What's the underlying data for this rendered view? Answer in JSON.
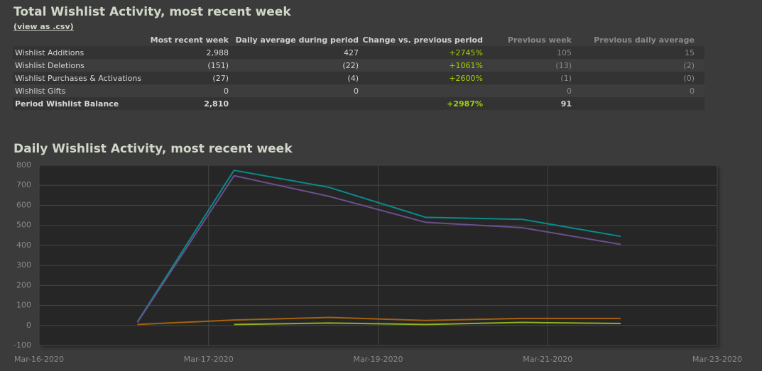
{
  "header": {
    "title": "Total Wishlist Activity, most recent week",
    "link": "(view as .csv)"
  },
  "table": {
    "columns": [
      "Most recent week",
      "Daily average during period",
      "Change vs. previous period",
      "Previous week",
      "Previous daily average"
    ],
    "rows": [
      [
        "Wishlist Additions",
        "2,988",
        "427",
        "+2745%",
        "105",
        "15"
      ],
      [
        "Wishlist Deletions",
        "(151)",
        "(22)",
        "+1061%",
        "(13)",
        "(2)"
      ],
      [
        "Wishlist Purchases & Activations",
        "(27)",
        "(4)",
        "+2600%",
        "(1)",
        "(0)"
      ],
      [
        "Wishlist Gifts",
        "0",
        "0",
        null,
        "0",
        "0"
      ],
      [
        "Period Wishlist Balance",
        "2,810",
        null,
        "+2987%",
        "91",
        null
      ]
    ]
  },
  "chart_data": {
    "type": "line",
    "title": "Daily Wishlist Activity, most recent week",
    "x": [
      0.58,
      1.15,
      1.71,
      2.28,
      2.85,
      3.43
    ],
    "xlim": [
      0,
      4
    ],
    "xticks": [
      {
        "value": 0,
        "label": "Mar-16-2020"
      },
      {
        "value": 1,
        "label": "Mar-17-2020"
      },
      {
        "value": 2,
        "label": "Mar-19-2020"
      },
      {
        "value": 3,
        "label": "Mar-21-2020"
      },
      {
        "value": 4,
        "label": "Mar-23-2020"
      }
    ],
    "ylim": [
      -100,
      800
    ],
    "yticks": [
      -100,
      0,
      100,
      200,
      300,
      400,
      500,
      600,
      700,
      800
    ],
    "grid": true,
    "series": [
      {
        "color": "#0a8a8a",
        "values": [
          18,
          775,
          690,
          540,
          530,
          445
        ]
      },
      {
        "color": "#6a4f8c",
        "values": [
          15,
          748,
          645,
          515,
          488,
          405
        ]
      },
      {
        "color": "#a5620d",
        "values": [
          5,
          27,
          40,
          25,
          35,
          35
        ]
      },
      {
        "color": "#8fb021",
        "values": [
          null,
          5,
          12,
          5,
          15,
          10
        ]
      }
    ]
  }
}
